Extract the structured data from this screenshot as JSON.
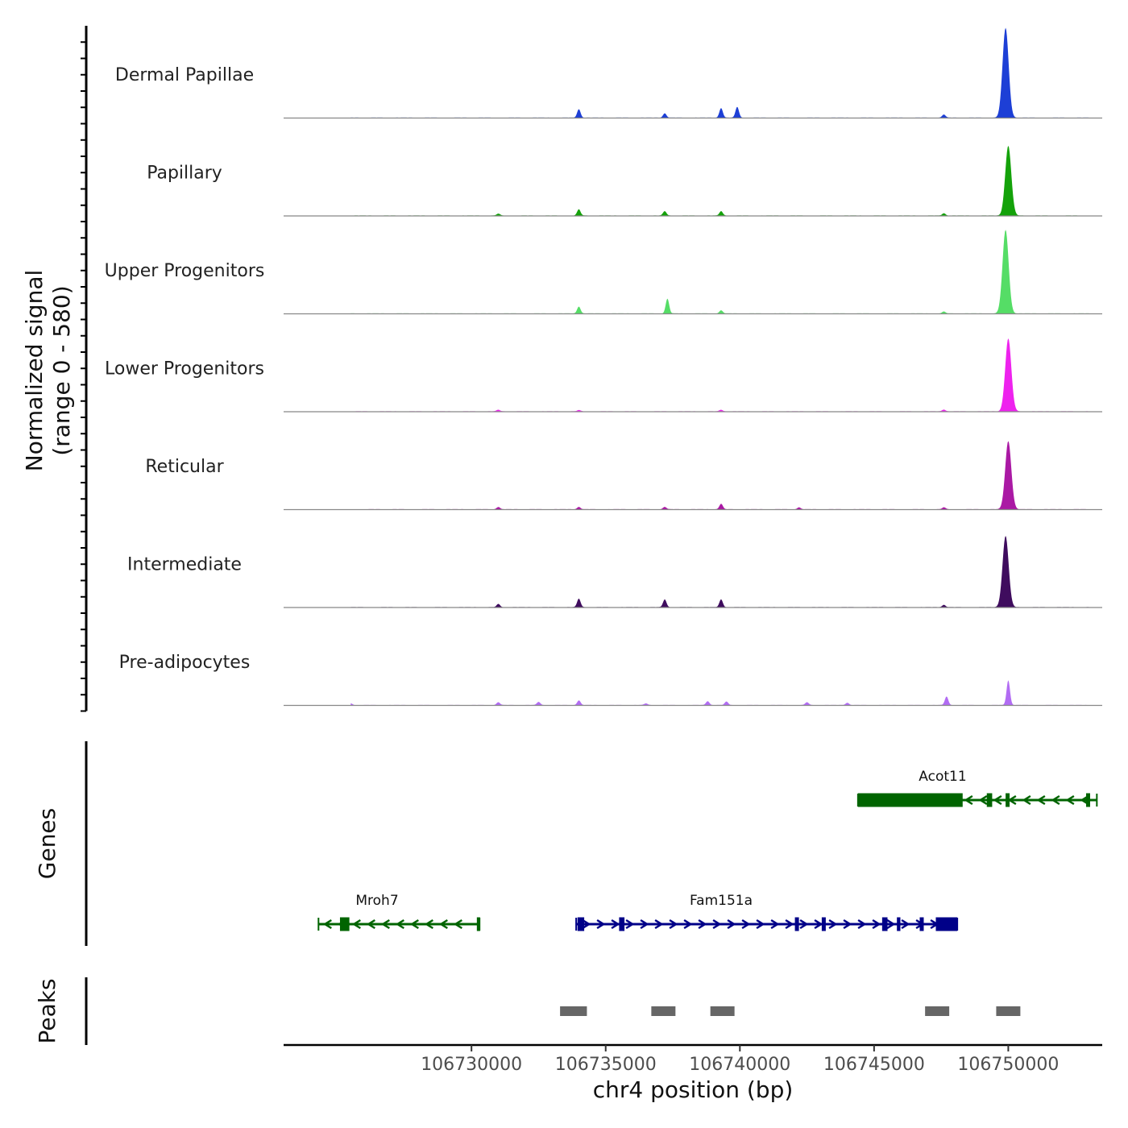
{
  "chart_data": {
    "type": "area",
    "title": "",
    "ylabel_line1": "Normalized signal",
    "ylabel_line2": "(range 0 - 580)",
    "y_range": [
      0,
      580
    ],
    "xlabel": "chr4 position (bp)",
    "xlim": [
      106723000,
      106753500
    ],
    "x_ticks": [
      106730000,
      106735000,
      106740000,
      106745000,
      106750000
    ],
    "x_tick_labels": [
      "106730000",
      "106735000",
      "106740000",
      "106745000",
      "106750000"
    ],
    "tracks": [
      {
        "name": "Dermal Papillae",
        "color": "#1d3fd6",
        "peaks": [
          [
            106734000,
            55
          ],
          [
            106737200,
            28
          ],
          [
            106739300,
            62
          ],
          [
            106739900,
            70
          ],
          [
            106747600,
            20
          ],
          [
            106749900,
            580
          ]
        ]
      },
      {
        "name": "Papillary",
        "color": "#14a20a",
        "peaks": [
          [
            106731000,
            12
          ],
          [
            106734000,
            40
          ],
          [
            106737200,
            28
          ],
          [
            106739300,
            28
          ],
          [
            106747600,
            15
          ],
          [
            106750000,
            450
          ]
        ]
      },
      {
        "name": "Upper Progenitors",
        "color": "#55dd66",
        "peaks": [
          [
            106734000,
            45
          ],
          [
            106737300,
            95
          ],
          [
            106739300,
            20
          ],
          [
            106747600,
            12
          ],
          [
            106749900,
            540
          ]
        ]
      },
      {
        "name": "Lower Progenitors",
        "color": "#ee22ee",
        "peaks": [
          [
            106731000,
            10
          ],
          [
            106734000,
            8
          ],
          [
            106739300,
            10
          ],
          [
            106747600,
            12
          ],
          [
            106750000,
            470
          ]
        ]
      },
      {
        "name": "Reticular",
        "color": "#aa19a4",
        "peaks": [
          [
            106731000,
            15
          ],
          [
            106734000,
            15
          ],
          [
            106737200,
            15
          ],
          [
            106739300,
            35
          ],
          [
            106742200,
            12
          ],
          [
            106747600,
            12
          ],
          [
            106750000,
            440
          ]
        ]
      },
      {
        "name": "Intermediate",
        "color": "#3f0c5e",
        "peaks": [
          [
            106731000,
            20
          ],
          [
            106734000,
            55
          ],
          [
            106737200,
            50
          ],
          [
            106739300,
            50
          ],
          [
            106747600,
            15
          ],
          [
            106749900,
            460
          ]
        ]
      },
      {
        "name": "Pre-adipocytes",
        "color": "#b26cf3",
        "peaks": [
          [
            106725500,
            10
          ],
          [
            106731000,
            18
          ],
          [
            106732500,
            20
          ],
          [
            106734000,
            30
          ],
          [
            106736500,
            10
          ],
          [
            106738800,
            25
          ],
          [
            106739500,
            22
          ],
          [
            106742500,
            18
          ],
          [
            106744000,
            15
          ],
          [
            106747700,
            55
          ],
          [
            106750000,
            160
          ]
        ]
      }
    ],
    "genes_label": "Genes",
    "genes": [
      {
        "name": "Acot11",
        "strand": "-",
        "color": "#006400",
        "start": 106744400,
        "end": 106753300,
        "thick_start": 106744400,
        "thick_end": 106748300,
        "exons": [
          [
            106744400,
            106748300
          ],
          [
            106749200,
            106749400
          ],
          [
            106749900,
            106750050
          ],
          [
            106752900,
            106753050
          ]
        ]
      },
      {
        "name": "Mroh7",
        "strand": "-",
        "color": "#006400",
        "start": 106724300,
        "end": 106730300,
        "thick_start": 106725100,
        "thick_end": 106725450,
        "exons": [
          [
            106725100,
            106725450
          ],
          [
            106730200,
            106730300
          ]
        ]
      },
      {
        "name": "Fam151a",
        "strand": "+",
        "color": "#000088",
        "start": 106733900,
        "end": 106748100,
        "thick_start": 106747300,
        "thick_end": 106748100,
        "exons": [
          [
            106733950,
            106734200
          ],
          [
            106735500,
            106735700
          ],
          [
            106742050,
            106742200
          ],
          [
            106743050,
            106743200
          ],
          [
            106745300,
            106745500
          ],
          [
            106745850,
            106745980
          ],
          [
            106746700,
            106746850
          ],
          [
            106747300,
            106748100
          ]
        ]
      }
    ],
    "peaks_label": "Peaks",
    "peak_color": "#666666",
    "peak_regions": [
      [
        106733300,
        106734300
      ],
      [
        106736700,
        106737600
      ],
      [
        106738900,
        106739800
      ],
      [
        106746900,
        106747800
      ],
      [
        106749550,
        106750450
      ]
    ]
  }
}
